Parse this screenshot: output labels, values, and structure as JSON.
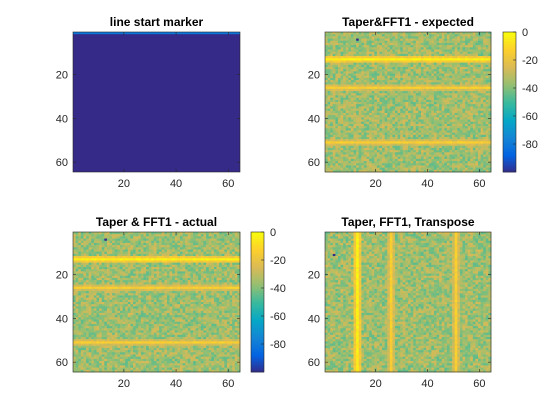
{
  "figure": {
    "background": "#ffffff",
    "colormap": "parula",
    "colormap_stops": [
      "#352a87",
      "#0363e1",
      "#1485d4",
      "#06a7c6",
      "#38b99e",
      "#92bf73",
      "#d9ba56",
      "#fcce2e",
      "#f9fb0e"
    ]
  },
  "chart_data": [
    {
      "type": "heatmap",
      "title": "line start marker",
      "xlabel": "",
      "ylabel": "",
      "xlim": [
        0.5,
        64.5
      ],
      "ylim": [
        0.5,
        64.5
      ],
      "y_reversed": true,
      "xticks": [
        20,
        40,
        60
      ],
      "yticks": [
        20,
        40,
        60
      ],
      "grid": false,
      "colorbar": null,
      "description_values": {
        "fill_value": -100,
        "marker_row": 1,
        "marker_value": -80,
        "marker_columns_every": 16
      }
    },
    {
      "type": "heatmap",
      "title": "Taper&FFT1 - expected",
      "xlabel": "",
      "ylabel": "",
      "xlim": [
        0.5,
        64.5
      ],
      "ylim": [
        0.5,
        64.5
      ],
      "y_reversed": true,
      "xticks": [
        20,
        40,
        60
      ],
      "yticks": [
        20,
        40,
        60
      ],
      "grid": false,
      "orientation": "rows",
      "noise_mean": -35,
      "noise_spread": 10,
      "peaks": [
        {
          "index": 13,
          "value": 0
        },
        {
          "index": 26,
          "value": -10
        },
        {
          "index": 51,
          "value": -10
        }
      ],
      "outliers": [
        {
          "row": 4,
          "col": 13,
          "value": -100
        }
      ],
      "colorbar": {
        "ticks": [
          0,
          -20,
          -40,
          -60,
          -80
        ],
        "clim": [
          -100,
          0
        ]
      }
    },
    {
      "type": "heatmap",
      "title": "Taper & FFT1 - actual",
      "xlabel": "",
      "ylabel": "",
      "xlim": [
        0.5,
        64.5
      ],
      "ylim": [
        0.5,
        64.5
      ],
      "y_reversed": true,
      "xticks": [
        20,
        40,
        60
      ],
      "yticks": [
        20,
        40,
        60
      ],
      "grid": false,
      "orientation": "rows",
      "noise_mean": -35,
      "noise_spread": 10,
      "peaks": [
        {
          "index": 13,
          "value": 0
        },
        {
          "index": 26,
          "value": -10
        },
        {
          "index": 51,
          "value": -10
        }
      ],
      "outliers": [
        {
          "row": 4,
          "col": 13,
          "value": -100
        }
      ],
      "colorbar": {
        "ticks": [
          0,
          -20,
          -40,
          -60,
          -80
        ],
        "clim": [
          -100,
          0
        ]
      }
    },
    {
      "type": "heatmap",
      "title": "Taper, FFT1, Transpose",
      "xlabel": "",
      "ylabel": "",
      "xlim": [
        0.5,
        64.5
      ],
      "ylim": [
        0.5,
        64.5
      ],
      "y_reversed": true,
      "xticks": [
        20,
        40,
        60
      ],
      "yticks": [
        20,
        40,
        60
      ],
      "grid": false,
      "orientation": "columns",
      "noise_mean": -35,
      "noise_spread": 10,
      "peaks": [
        {
          "index": 13,
          "value": 0
        },
        {
          "index": 26,
          "value": -10
        },
        {
          "index": 51,
          "value": -10
        }
      ],
      "outliers": [
        {
          "row": 11,
          "col": 4,
          "value": -100
        }
      ],
      "colorbar": null
    }
  ]
}
